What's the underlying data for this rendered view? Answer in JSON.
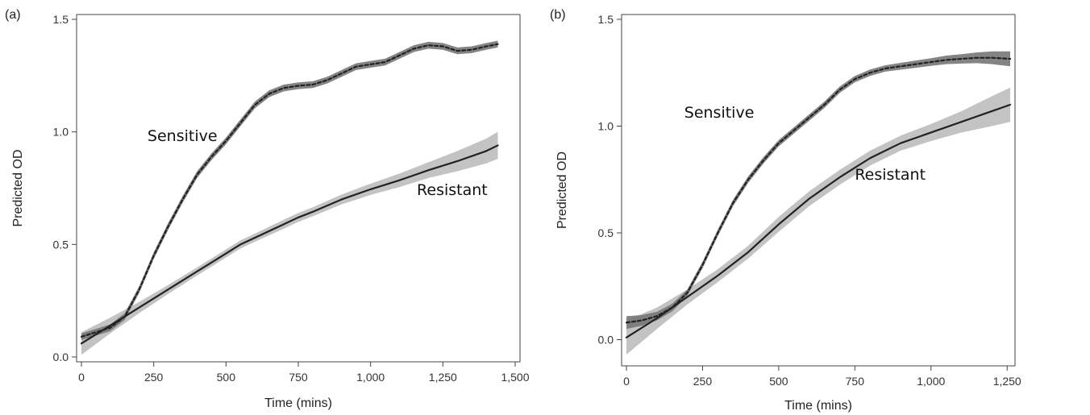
{
  "chart_data": [
    {
      "type": "line",
      "panel_label": "(a)",
      "xlabel": "Time (mins)",
      "ylabel": "Predicted OD",
      "xlim": [
        0,
        1500
      ],
      "ylim": [
        0,
        1.5
      ],
      "xticks": [
        0,
        250,
        500,
        750,
        1000,
        1250,
        1500
      ],
      "xtick_labels": [
        "0",
        "250",
        "500",
        "750",
        "1,000",
        "1,250",
        "1,500"
      ],
      "yticks": [
        0,
        0.5,
        1,
        1.5
      ],
      "ytick_labels": [
        "0.0",
        "0.5",
        "1.0",
        "1.5"
      ],
      "grid": false,
      "legend": "none",
      "series": [
        {
          "name": "Sensitive",
          "line_style": "dashed",
          "color": "#222222",
          "band_color": "#777777",
          "x": [
            0,
            50,
            100,
            150,
            200,
            250,
            300,
            350,
            400,
            450,
            500,
            550,
            600,
            650,
            700,
            750,
            800,
            850,
            900,
            950,
            1000,
            1050,
            1100,
            1150,
            1200,
            1250,
            1300,
            1350,
            1400,
            1440
          ],
          "y": [
            0.09,
            0.11,
            0.13,
            0.18,
            0.3,
            0.45,
            0.58,
            0.7,
            0.81,
            0.89,
            0.96,
            1.04,
            1.12,
            1.17,
            1.195,
            1.205,
            1.21,
            1.23,
            1.26,
            1.29,
            1.3,
            1.31,
            1.34,
            1.37,
            1.385,
            1.38,
            1.36,
            1.365,
            1.38,
            1.39
          ],
          "ci_halfwidth": 0.015
        },
        {
          "name": "Resistant",
          "line_style": "solid",
          "color": "#222222",
          "band_color": "#bdbdbd",
          "x": [
            0,
            100,
            200,
            300,
            400,
            500,
            550,
            600,
            700,
            750,
            800,
            900,
            1000,
            1100,
            1200,
            1300,
            1400,
            1440
          ],
          "y": [
            0.06,
            0.14,
            0.22,
            0.3,
            0.38,
            0.46,
            0.5,
            0.53,
            0.59,
            0.62,
            0.645,
            0.7,
            0.745,
            0.785,
            0.83,
            0.87,
            0.915,
            0.94
          ],
          "ci_halfwidth": [
            0.05,
            0.035,
            0.025,
            0.02,
            0.018,
            0.018,
            0.018,
            0.018,
            0.02,
            0.02,
            0.02,
            0.022,
            0.025,
            0.03,
            0.035,
            0.045,
            0.055,
            0.06
          ]
        }
      ],
      "annotations": [
        {
          "text": "Sensitive",
          "x": 470,
          "y": 0.96,
          "anchor": "end"
        },
        {
          "text": "Resistant",
          "x": 1160,
          "y": 0.72,
          "anchor": "start"
        }
      ]
    },
    {
      "type": "line",
      "panel_label": "(b)",
      "xlabel": "Time (mins)",
      "ylabel": "Predicted OD",
      "xlim": [
        0,
        1260
      ],
      "ylim": [
        -0.1,
        1.5
      ],
      "xticks": [
        0,
        250,
        500,
        750,
        1000,
        1250
      ],
      "xtick_labels": [
        "0",
        "250",
        "500",
        "750",
        "1,000",
        "1,250"
      ],
      "yticks": [
        0,
        0.5,
        1,
        1.5
      ],
      "ytick_labels": [
        "0.0",
        "0.5",
        "1.0",
        "1.5"
      ],
      "grid": false,
      "legend": "none",
      "series": [
        {
          "name": "Sensitive",
          "line_style": "dashed",
          "color": "#222222",
          "band_color": "#777777",
          "x": [
            0,
            50,
            100,
            150,
            200,
            250,
            300,
            350,
            400,
            450,
            500,
            550,
            600,
            650,
            700,
            750,
            800,
            850,
            900,
            950,
            1000,
            1050,
            1100,
            1150,
            1200,
            1260
          ],
          "y": [
            0.08,
            0.09,
            0.11,
            0.15,
            0.22,
            0.35,
            0.5,
            0.64,
            0.75,
            0.84,
            0.92,
            0.98,
            1.04,
            1.1,
            1.17,
            1.22,
            1.25,
            1.27,
            1.28,
            1.29,
            1.3,
            1.31,
            1.315,
            1.32,
            1.32,
            1.315
          ],
          "ci_halfwidth": [
            0.03,
            0.025,
            0.02,
            0.018,
            0.015,
            0.015,
            0.015,
            0.015,
            0.015,
            0.015,
            0.015,
            0.015,
            0.015,
            0.015,
            0.015,
            0.015,
            0.015,
            0.015,
            0.016,
            0.017,
            0.018,
            0.02,
            0.022,
            0.025,
            0.03,
            0.035
          ]
        },
        {
          "name": "Resistant",
          "line_style": "solid",
          "color": "#222222",
          "band_color": "#bdbdbd",
          "x": [
            0,
            100,
            200,
            300,
            400,
            500,
            600,
            700,
            800,
            900,
            1000,
            1100,
            1200,
            1260
          ],
          "y": [
            0.01,
            0.1,
            0.2,
            0.3,
            0.41,
            0.54,
            0.66,
            0.76,
            0.85,
            0.92,
            0.97,
            1.02,
            1.07,
            1.1
          ],
          "ci_halfwidth": [
            0.08,
            0.05,
            0.035,
            0.03,
            0.03,
            0.035,
            0.035,
            0.035,
            0.035,
            0.035,
            0.04,
            0.05,
            0.07,
            0.08
          ]
        }
      ],
      "annotations": [
        {
          "text": "Sensitive",
          "x": 190,
          "y": 1.04,
          "anchor": "start"
        },
        {
          "text": "Resistant",
          "x": 750,
          "y": 0.75,
          "anchor": "start"
        }
      ]
    }
  ]
}
